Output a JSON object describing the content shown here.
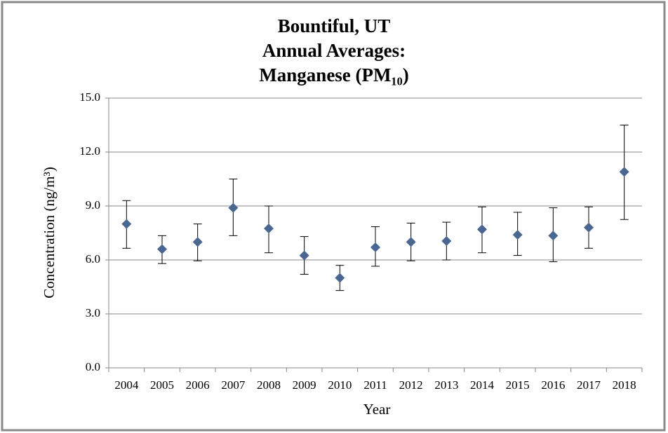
{
  "chart_data": {
    "type": "scatter",
    "title": [
      "Bountiful, UT",
      "Annual Averages:",
      "Manganese (PM₁₀)"
    ],
    "x_label": "Year",
    "y_label": "Concentration (ng/m³)",
    "categories": [
      "2004",
      "2005",
      "2006",
      "2007",
      "2008",
      "2009",
      "2010",
      "2011",
      "2012",
      "2013",
      "2014",
      "2015",
      "2016",
      "2017",
      "2018"
    ],
    "series": [
      {
        "color": "#4a6792",
        "values": [
          8.0,
          6.6,
          7.0,
          8.9,
          7.75,
          6.25,
          5.0,
          6.7,
          7.0,
          7.05,
          7.7,
          7.4,
          7.35,
          7.8,
          10.9
        ],
        "lower": [
          6.65,
          5.8,
          5.95,
          7.35,
          6.4,
          5.2,
          4.3,
          5.65,
          5.95,
          6.0,
          6.4,
          6.25,
          5.9,
          6.65,
          8.25
        ],
        "upper": [
          9.3,
          7.35,
          8.0,
          10.5,
          9.0,
          7.3,
          5.7,
          7.85,
          8.05,
          8.1,
          8.95,
          8.65,
          8.9,
          8.95,
          13.5
        ]
      }
    ],
    "ylim": [
      0,
      15
    ],
    "yticks": [
      {
        "value": 0,
        "label": "0.0"
      },
      {
        "value": 3,
        "label": "3.0"
      },
      {
        "value": 6,
        "label": "6.0"
      },
      {
        "value": 9,
        "label": "9.0"
      },
      {
        "value": 12,
        "label": "12.0"
      },
      {
        "value": 15,
        "label": "15.0"
      }
    ],
    "grid": true
  }
}
